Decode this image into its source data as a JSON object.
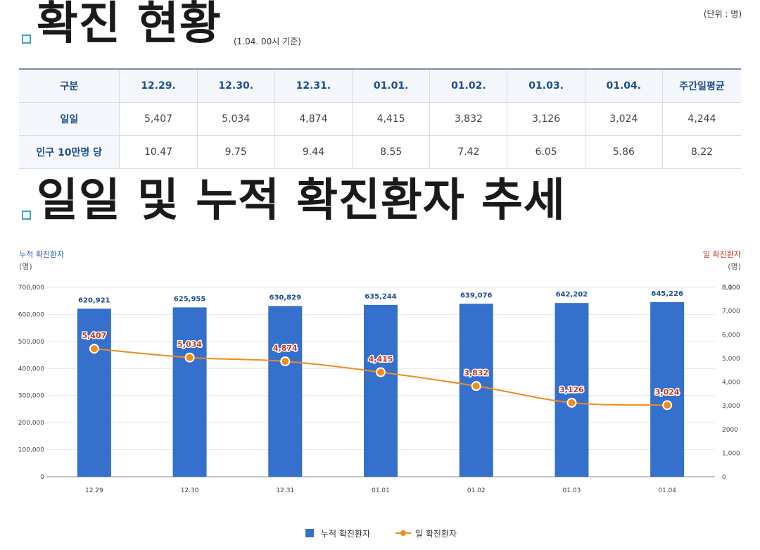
{
  "section1": {
    "title": "확진 현황",
    "basis": "(1.04. 00시 기준)",
    "unit": "(단위 : 명)"
  },
  "table": {
    "headers": [
      "구분",
      "12.29.",
      "12.30.",
      "12.31.",
      "01.01.",
      "01.02.",
      "01.03.",
      "01.04.",
      "주간일평균"
    ],
    "rows": [
      {
        "label": "일일",
        "values": [
          "5,407",
          "5,034",
          "4,874",
          "4,415",
          "3,832",
          "3,126",
          "3,024",
          "4,244"
        ]
      },
      {
        "label": "인구 10만명 당",
        "values": [
          "10.47",
          "9.75",
          "9.44",
          "8.55",
          "7.42",
          "6.05",
          "5.86",
          "8.22"
        ]
      }
    ]
  },
  "section2": {
    "title": "일일 및 누적 확진환자 추세"
  },
  "colors": {
    "bar": "#3470cc",
    "line": "#f08c1c",
    "left_axis_title": "#2f62a8",
    "right_axis_title": "#c0392b",
    "accent_bullet": "#3aa0c8"
  },
  "chart_data": {
    "type": "bar",
    "categories": [
      "12.29",
      "12.30",
      "12.31",
      "01.01",
      "01.02",
      "01.03",
      "01.04"
    ],
    "series": [
      {
        "name": "누적 확진환자",
        "type": "bar",
        "axis": "left",
        "values": [
          620921,
          625955,
          630829,
          635244,
          639076,
          642202,
          645226
        ],
        "labels": [
          "620,921",
          "625,955",
          "630,829",
          "635,244",
          "639,076",
          "642,202",
          "645,226"
        ]
      },
      {
        "name": "일 확진환자",
        "type": "line",
        "axis": "right",
        "values": [
          5407,
          5034,
          4874,
          4415,
          3832,
          3126,
          3024
        ],
        "labels": [
          "5,407",
          "5,034",
          "4,874",
          "4,415",
          "3,832",
          "3,126",
          "3,024"
        ]
      }
    ],
    "left_axis": {
      "title": "누적 확진환자",
      "unit": "(명)",
      "ylim": [
        0,
        700000
      ],
      "ticks": [
        "0",
        "100,000",
        "200,000",
        "300,000",
        "400,000",
        "500,000",
        "600,000",
        "700,000"
      ]
    },
    "right_axis": {
      "title": "일 확진환자",
      "unit": "(명)",
      "ylim": [
        0,
        8000
      ],
      "ticks": [
        "0",
        "1,000",
        "2000",
        "3,000",
        "4,000",
        "5,000",
        "6,000",
        "7,000",
        "8,000",
        "8,100"
      ]
    },
    "grid": true,
    "legend_position": "bottom-center"
  }
}
